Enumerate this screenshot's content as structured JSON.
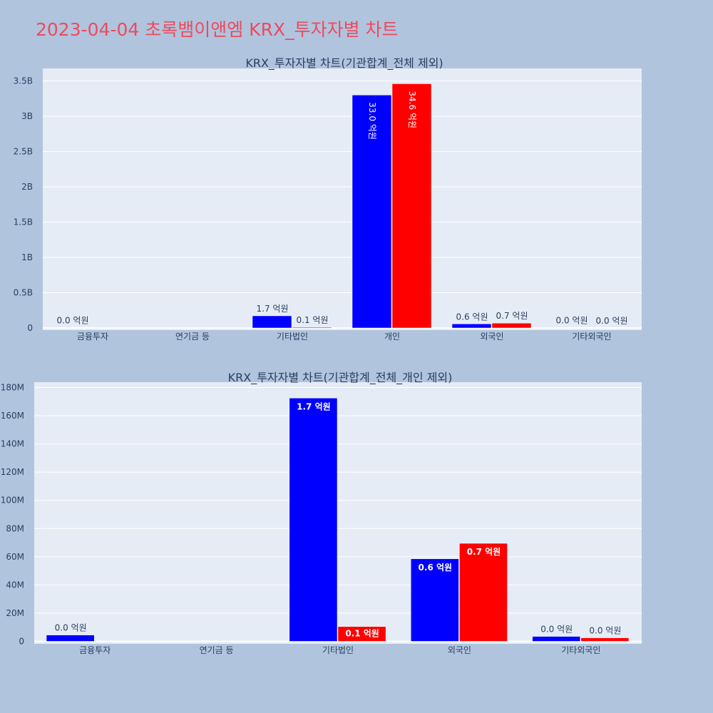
{
  "title": "2023-04-04 초록뱀이앤엠 KRX_투자자별 차트",
  "colors": {
    "series1": "#0000ff",
    "series2": "#ff0000",
    "plot_bg": "#e5ecf6",
    "page_bg": "#b0c4de",
    "title": "#ee4a5d"
  },
  "chart_data": [
    {
      "type": "bar",
      "title": "KRX_투자자별 차트(기관합계_전체 제외)",
      "categories": [
        "금융투자",
        "연기금 등",
        "기타법인",
        "개인",
        "외국인",
        "기타외국인"
      ],
      "ylim": [
        0,
        3500000000
      ],
      "yticks": [
        0,
        500000000,
        1000000000,
        1500000000,
        2000000000,
        2500000000,
        3000000000,
        3500000000
      ],
      "ytick_labels": [
        "0",
        "0.5B",
        "1B",
        "1.5B",
        "2B",
        "2.5B",
        "3B",
        "3.5B"
      ],
      "grid": true,
      "series": [
        {
          "values": [
            4500000,
            null,
            172000000,
            3300000000,
            58000000,
            3500000
          ],
          "labels": [
            "0.0 억원",
            "",
            "1.7 억원",
            "33.0 억원",
            "0.6 억원",
            "0.0 억원"
          ]
        },
        {
          "values": [
            null,
            null,
            10500000,
            3460000000,
            69000000,
            2500000
          ],
          "labels": [
            "",
            "",
            "0.1 억원",
            "34.6 억원",
            "0.7 억원",
            "0.0 억원"
          ]
        }
      ]
    },
    {
      "type": "bar",
      "title": "KRX_투자자별 차트(기관합계_전체_개인 제외)",
      "categories": [
        "금융투자",
        "연기금 등",
        "기타법인",
        "외국인",
        "기타외국인"
      ],
      "ylim": [
        0,
        180000000
      ],
      "yticks": [
        0,
        20000000,
        40000000,
        60000000,
        80000000,
        100000000,
        120000000,
        140000000,
        160000000,
        180000000
      ],
      "ytick_labels": [
        "0",
        "20M",
        "40M",
        "60M",
        "80M",
        "100M",
        "120M",
        "140M",
        "160M",
        "180M"
      ],
      "grid": true,
      "series": [
        {
          "values": [
            4500000,
            null,
            172500000,
            58500000,
            3500000
          ],
          "labels": [
            "0.0 억원",
            "",
            "1.7 억원",
            "0.6 억원",
            "0.0 억원"
          ]
        },
        {
          "values": [
            null,
            null,
            10500000,
            69500000,
            2500000
          ],
          "labels": [
            "",
            "",
            "0.1 억원",
            "0.7 억원",
            "0.0 억원"
          ]
        }
      ]
    }
  ]
}
